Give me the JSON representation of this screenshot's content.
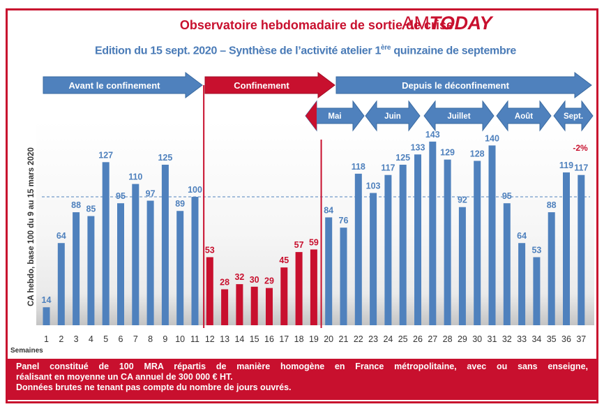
{
  "header": {
    "title": "Observatoire hebdomadaire de sortie de crise",
    "brand_am": "AM",
    "brand_today": "TODAY",
    "subtitle_main": "Edition du 15 sept. 2020 – Synthèse de l’activité atelier 1",
    "subtitle_sup": "ère",
    "subtitle_end": " quinzaine de septembre"
  },
  "phases": [
    {
      "label": "Avant le confinement",
      "color": "#4f81bd"
    },
    {
      "label": "Confinement",
      "color": "#c8102e"
    },
    {
      "label": "Depuis le déconfinement",
      "color": "#4f81bd"
    }
  ],
  "months": [
    "Mai",
    "Juin",
    "Juillet",
    "Août",
    "Sept."
  ],
  "chart_data": {
    "type": "bar",
    "ylabel": "CA hebdo, base 100 du 9 au 15 mars 2020",
    "xlabel": "Semaines",
    "categories": [
      "1",
      "2",
      "3",
      "4",
      "5",
      "6",
      "7",
      "8",
      "9",
      "10",
      "11",
      "12",
      "13",
      "14",
      "15",
      "16",
      "17",
      "18",
      "19",
      "20",
      "21",
      "22",
      "23",
      "24",
      "25",
      "26",
      "27",
      "28",
      "29",
      "30",
      "31",
      "32",
      "33",
      "34",
      "35",
      "36",
      "37"
    ],
    "values": [
      14,
      64,
      88,
      85,
      127,
      95,
      110,
      97,
      125,
      89,
      100,
      53,
      28,
      32,
      30,
      29,
      45,
      57,
      59,
      84,
      76,
      118,
      103,
      117,
      125,
      133,
      143,
      129,
      92,
      128,
      140,
      95,
      64,
      53,
      88,
      119,
      117
    ],
    "confinement_weeks": [
      12,
      19
    ],
    "reference_line": 100,
    "ylim": [
      0,
      150
    ],
    "annotation": "-2%",
    "colors": {
      "normal": "#4f81bd",
      "confinement": "#c8102e",
      "label": "#4f81bd"
    }
  },
  "footer": {
    "line1": "Panel constitué de 100 MRA répartis de manière homogène en France métropolitaine, avec ou sans enseigne,",
    "line2": "réalisant en moyenne un CA annuel de 300 000 € HT.",
    "line3": "Données brutes ne tenant pas compte du nombre de jours ouvrés."
  }
}
